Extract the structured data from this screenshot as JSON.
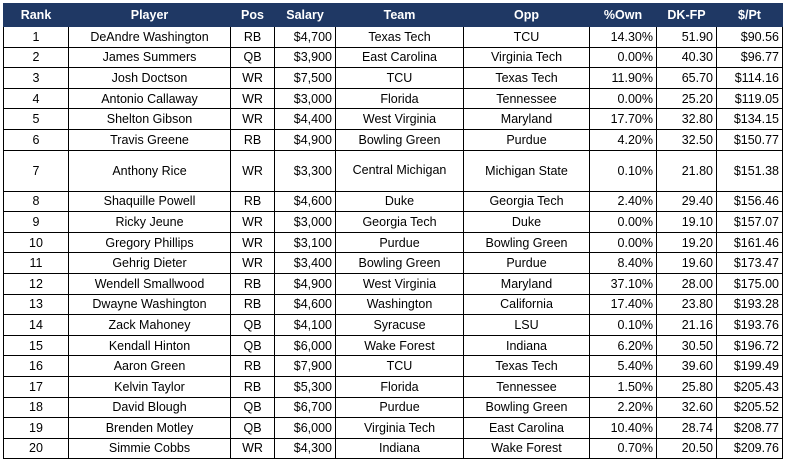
{
  "headers": [
    "Rank",
    "Player",
    "Pos",
    "Salary",
    "Team",
    "Opp",
    "%Own",
    "DK-FP",
    "$/Pt"
  ],
  "rows": [
    [
      "1",
      "DeAndre Washington",
      "RB",
      "$4,700",
      "Texas Tech",
      "TCU",
      "14.30%",
      "51.90",
      "$90.56"
    ],
    [
      "2",
      "James Summers",
      "QB",
      "$3,900",
      "East Carolina",
      "Virginia Tech",
      "0.00%",
      "40.30",
      "$96.77"
    ],
    [
      "3",
      "Josh Doctson",
      "WR",
      "$7,500",
      "TCU",
      "Texas Tech",
      "11.90%",
      "65.70",
      "$114.16"
    ],
    [
      "4",
      "Antonio Callaway",
      "WR",
      "$3,000",
      "Florida",
      "Tennessee",
      "0.00%",
      "25.20",
      "$119.05"
    ],
    [
      "5",
      "Shelton Gibson",
      "WR",
      "$4,400",
      "West Virginia",
      "Maryland",
      "17.70%",
      "32.80",
      "$134.15"
    ],
    [
      "6",
      "Travis Greene",
      "RB",
      "$4,900",
      "Bowling Green",
      "Purdue",
      "4.20%",
      "32.50",
      "$150.77"
    ],
    [
      "7",
      "Anthony Rice",
      "WR",
      "$3,300",
      "Central Michigan",
      "Michigan State",
      "0.10%",
      "21.80",
      "$151.38"
    ],
    [
      "8",
      "Shaquille Powell",
      "RB",
      "$4,600",
      "Duke",
      "Georgia Tech",
      "2.40%",
      "29.40",
      "$156.46"
    ],
    [
      "9",
      "Ricky Jeune",
      "WR",
      "$3,000",
      "Georgia Tech",
      "Duke",
      "0.00%",
      "19.10",
      "$157.07"
    ],
    [
      "10",
      "Gregory Phillips",
      "WR",
      "$3,100",
      "Purdue",
      "Bowling Green",
      "0.00%",
      "19.20",
      "$161.46"
    ],
    [
      "11",
      "Gehrig Dieter",
      "WR",
      "$3,400",
      "Bowling Green",
      "Purdue",
      "8.40%",
      "19.60",
      "$173.47"
    ],
    [
      "12",
      "Wendell Smallwood",
      "RB",
      "$4,900",
      "West Virginia",
      "Maryland",
      "37.10%",
      "28.00",
      "$175.00"
    ],
    [
      "13",
      "Dwayne Washington",
      "RB",
      "$4,600",
      "Washington",
      "California",
      "17.40%",
      "23.80",
      "$193.28"
    ],
    [
      "14",
      "Zack Mahoney",
      "QB",
      "$4,100",
      "Syracuse",
      "LSU",
      "0.10%",
      "21.16",
      "$193.76"
    ],
    [
      "15",
      "Kendall Hinton",
      "QB",
      "$6,000",
      "Wake Forest",
      "Indiana",
      "6.20%",
      "30.50",
      "$196.72"
    ],
    [
      "16",
      "Aaron Green",
      "RB",
      "$7,900",
      "TCU",
      "Texas Tech",
      "5.40%",
      "39.60",
      "$199.49"
    ],
    [
      "17",
      "Kelvin Taylor",
      "RB",
      "$5,300",
      "Florida",
      "Tennessee",
      "1.50%",
      "25.80",
      "$205.43"
    ],
    [
      "18",
      "David Blough",
      "QB",
      "$6,700",
      "Purdue",
      "Bowling Green",
      "2.20%",
      "32.60",
      "$205.52"
    ],
    [
      "19",
      "Brenden Motley",
      "QB",
      "$6,000",
      "Virginia Tech",
      "East Carolina",
      "10.40%",
      "28.74",
      "$208.77"
    ],
    [
      "20",
      "Simmie Cobbs",
      "WR",
      "$4,300",
      "Indiana",
      "Wake Forest",
      "0.70%",
      "20.50",
      "$209.76"
    ]
  ],
  "colors": {
    "header_bg": "#1f3864",
    "header_text": "#ffffff",
    "border": "#000000"
  }
}
